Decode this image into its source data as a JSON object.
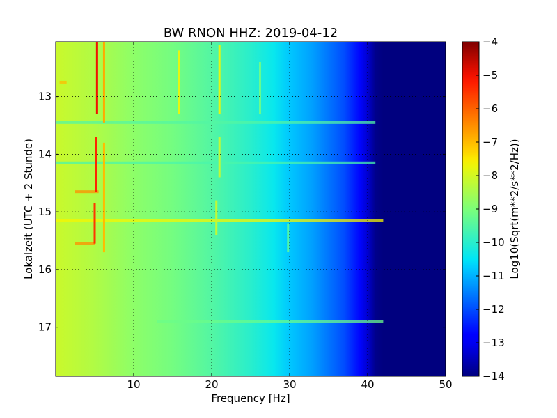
{
  "chart_data": {
    "type": "heatmap",
    "title": "BW RNON HHZ: 2019-04-12",
    "xlabel": "Frequency [Hz]",
    "ylabel": "Lokalzeit (UTC + 2 Stunde)",
    "xlim": [
      0,
      50
    ],
    "ylim": [
      12.05,
      17.85
    ],
    "y_inverted": true,
    "x_ticks": [
      10,
      20,
      30,
      40,
      50
    ],
    "x_tick_labels": [
      "10",
      "20",
      "30",
      "40",
      "50"
    ],
    "y_ticks": [
      13,
      14,
      15,
      16,
      17
    ],
    "y_tick_labels": [
      "13",
      "14",
      "15",
      "16",
      "17"
    ],
    "grid": true,
    "colorbar": {
      "label": "Log10(Sqrt(m**2/s**2/Hz))",
      "range": [
        -14,
        -4
      ],
      "ticks": [
        -4,
        -5,
        -6,
        -7,
        -8,
        -9,
        -10,
        -11,
        -12,
        -13,
        -14
      ],
      "tick_labels": [
        "−4",
        "−5",
        "−6",
        "−7",
        "−8",
        "−9",
        "−10",
        "−11",
        "−12",
        "−13",
        "−14"
      ],
      "colormap": "jet"
    },
    "background_profile": {
      "frequency_hz": [
        0,
        5,
        10,
        15,
        20,
        25,
        28,
        30,
        33,
        35,
        37,
        39,
        40,
        41,
        42,
        50
      ],
      "log10_psd": [
        -8.1,
        -8.4,
        -8.8,
        -9.1,
        -9.5,
        -10.0,
        -10.4,
        -10.8,
        -11.2,
        -11.6,
        -12.0,
        -12.7,
        -13.3,
        -13.9,
        -14.0,
        -14.0
      ]
    },
    "spectral_lines": [
      {
        "frequency_hz": 5.3,
        "time_start": 12.05,
        "time_end": 13.3,
        "log10_psd": -5.0
      },
      {
        "frequency_hz": 5.2,
        "time_start": 13.7,
        "time_end": 14.65,
        "log10_psd": -5.3
      },
      {
        "frequency_hz": 5.0,
        "time_start": 14.85,
        "time_end": 15.55,
        "log10_psd": -5.5
      },
      {
        "frequency_hz": 6.2,
        "time_start": 12.05,
        "time_end": 13.45,
        "log10_psd": -6.8
      },
      {
        "frequency_hz": 6.2,
        "time_start": 13.8,
        "time_end": 15.7,
        "log10_psd": -7.0
      },
      {
        "frequency_hz": 15.8,
        "time_start": 12.2,
        "time_end": 13.3,
        "log10_psd": -7.8
      },
      {
        "frequency_hz": 21.0,
        "time_start": 12.1,
        "time_end": 13.3,
        "log10_psd": -7.8
      },
      {
        "frequency_hz": 21.0,
        "time_start": 13.7,
        "time_end": 14.4,
        "log10_psd": -8.2
      },
      {
        "frequency_hz": 20.6,
        "time_start": 14.8,
        "time_end": 15.4,
        "log10_psd": -8.2
      },
      {
        "frequency_hz": 26.2,
        "time_start": 12.4,
        "time_end": 13.3,
        "log10_psd": -9.2
      },
      {
        "frequency_hz": 29.8,
        "time_start": 15.2,
        "time_end": 15.7,
        "log10_psd": -9.5
      }
    ],
    "horizontal_bands": [
      {
        "time": 12.75,
        "freq_start": 0.5,
        "freq_end": 1.4,
        "log10_psd": -7.0
      },
      {
        "time": 13.45,
        "freq_start": 0,
        "freq_end": 41,
        "log10_psd": -9.5
      },
      {
        "time": 14.15,
        "freq_start": 0,
        "freq_end": 41,
        "log10_psd": -9.6
      },
      {
        "time": 14.65,
        "freq_start": 2.5,
        "freq_end": 5.5,
        "log10_psd": -6.5
      },
      {
        "time": 15.15,
        "freq_start": 0,
        "freq_end": 42,
        "log10_psd": -7.6
      },
      {
        "time": 15.55,
        "freq_start": 2.5,
        "freq_end": 5.0,
        "log10_psd": -6.5
      },
      {
        "time": 16.9,
        "freq_start": 13,
        "freq_end": 42,
        "log10_psd": -9.2
      }
    ]
  }
}
